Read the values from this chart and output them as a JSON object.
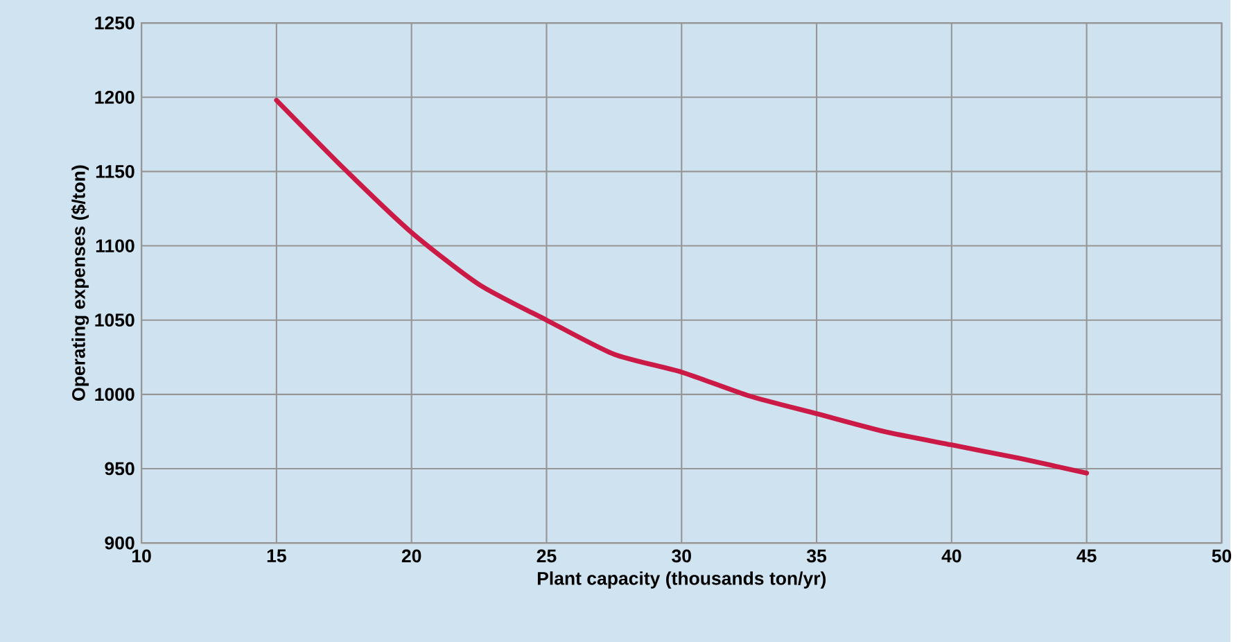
{
  "chart_data": {
    "type": "line",
    "xlabel": "Plant capacity (thousands ton/yr)",
    "ylabel": "Operating expenses ($/ton)",
    "series": [
      {
        "color": "#cc1a46",
        "x": [
          15,
          17.5,
          20,
          22.5,
          25,
          27.5,
          30,
          32.5,
          35,
          37.5,
          40,
          42.5,
          45
        ],
        "values": [
          1198,
          1152,
          1109,
          1074,
          1050,
          1027,
          1015,
          999,
          987,
          975,
          966,
          957,
          947
        ]
      }
    ],
    "xlim": [
      10,
      50
    ],
    "xticks": [
      10,
      15,
      20,
      25,
      30,
      35,
      40,
      45,
      50
    ],
    "ylim": [
      900,
      1250
    ],
    "yticks": [
      900,
      950,
      1000,
      1050,
      1100,
      1150,
      1200,
      1250
    ],
    "grid": true,
    "marker": "none",
    "line_style": "solid"
  }
}
